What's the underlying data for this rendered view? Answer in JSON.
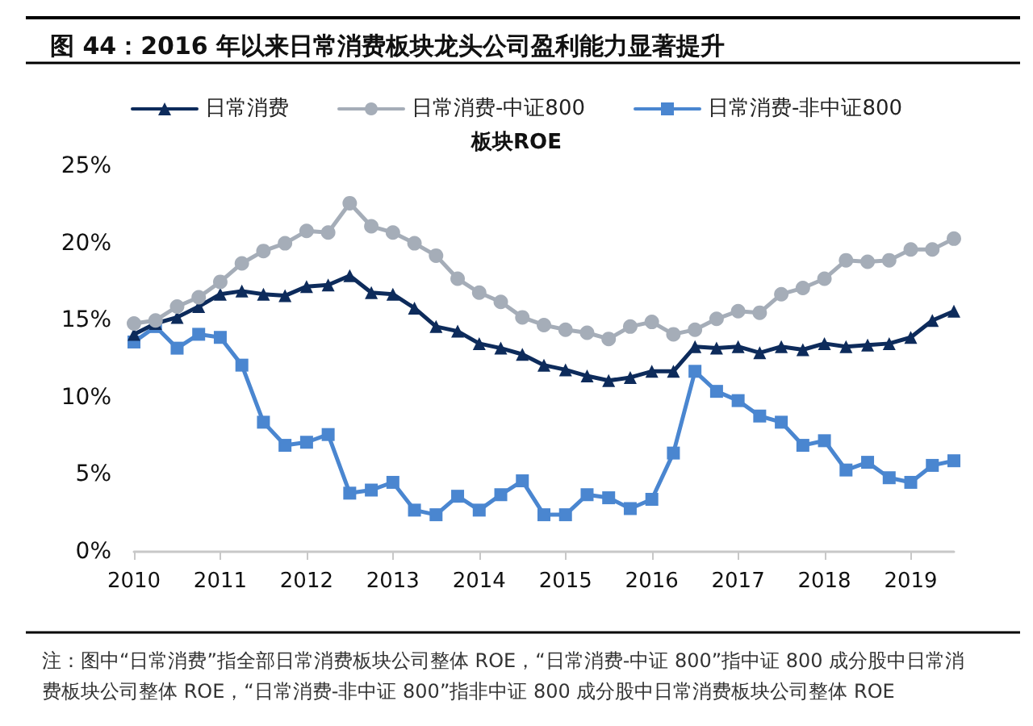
{
  "chart_data": {
    "type": "line",
    "title": "图 44：2016 年以来日常消费板块龙头公司盈利能力显著提升",
    "legend_title": "板块ROE",
    "x": [
      2010,
      2010.25,
      2010.5,
      2010.75,
      2011,
      2011.25,
      2011.5,
      2011.75,
      2012,
      2012.25,
      2012.5,
      2012.75,
      2013,
      2013.25,
      2013.5,
      2013.75,
      2014,
      2014.25,
      2014.5,
      2014.75,
      2015,
      2015.25,
      2015.5,
      2015.75,
      2016,
      2016.25,
      2016.5,
      2016.75,
      2017,
      2017.25,
      2017.5,
      2017.75,
      2018,
      2018.25,
      2018.5,
      2018.75,
      2019,
      2019.25,
      2019.5
    ],
    "series": [
      {
        "name": "日常消费",
        "color": "#0d2b5b",
        "marker": "triangle",
        "values": [
          14.1,
          14.8,
          15.2,
          15.9,
          16.7,
          16.9,
          16.7,
          16.6,
          17.2,
          17.3,
          17.9,
          16.8,
          16.7,
          15.8,
          14.6,
          14.3,
          13.5,
          13.2,
          12.8,
          12.1,
          11.8,
          11.4,
          11.1,
          11.3,
          11.7,
          11.7,
          13.3,
          13.2,
          13.3,
          12.9,
          13.3,
          13.1,
          13.5,
          13.3,
          13.4,
          13.5,
          13.9,
          15.0,
          15.6
        ]
      },
      {
        "name": "日常消费-中证800",
        "color": "#a5adb8",
        "marker": "circle",
        "values": [
          14.8,
          15.0,
          15.9,
          16.5,
          17.5,
          18.7,
          19.5,
          20.0,
          20.8,
          20.7,
          22.6,
          21.1,
          20.7,
          20.0,
          19.2,
          17.7,
          16.8,
          16.2,
          15.2,
          14.7,
          14.4,
          14.2,
          13.8,
          14.6,
          14.9,
          14.1,
          14.4,
          15.1,
          15.6,
          15.5,
          16.7,
          17.1,
          17.7,
          18.9,
          18.8,
          18.9,
          19.6,
          19.6,
          20.3
        ]
      },
      {
        "name": "日常消费-非中证800",
        "color": "#4a86d0",
        "marker": "square",
        "values": [
          13.6,
          14.6,
          13.2,
          14.1,
          13.9,
          12.1,
          8.4,
          6.9,
          7.1,
          7.6,
          3.8,
          4.0,
          4.5,
          2.7,
          2.4,
          3.6,
          2.7,
          3.7,
          4.6,
          2.4,
          2.4,
          3.7,
          3.5,
          2.8,
          3.4,
          6.4,
          11.7,
          10.4,
          9.8,
          8.8,
          8.4,
          6.9,
          7.2,
          5.3,
          5.8,
          4.8,
          4.5,
          5.6,
          5.9
        ]
      }
    ],
    "xlim": [
      2010,
      2019.5
    ],
    "xticks": [
      2010,
      2011,
      2012,
      2013,
      2014,
      2015,
      2016,
      2017,
      2018,
      2019
    ],
    "ylim": [
      0,
      25
    ],
    "yticks": [
      {
        "value": 0,
        "label": "0%"
      },
      {
        "value": 5,
        "label": "5%"
      },
      {
        "value": 10,
        "label": "10%"
      },
      {
        "value": 15,
        "label": "15%"
      },
      {
        "value": 20,
        "label": "20%"
      },
      {
        "value": 25,
        "label": "25%"
      }
    ],
    "grid": false,
    "legend": "top",
    "line_style": "solid",
    "annotations": [
      "注：图中“日常消费”指全部日常消费板块公司整体 ROE，“日常消费-中证 800”指中证 800 成分股中日常消费板块公司整体 ROE，“日常消费-非中证 800”指非中证 800 成分股中日常消费板块公司整体 ROE"
    ]
  }
}
